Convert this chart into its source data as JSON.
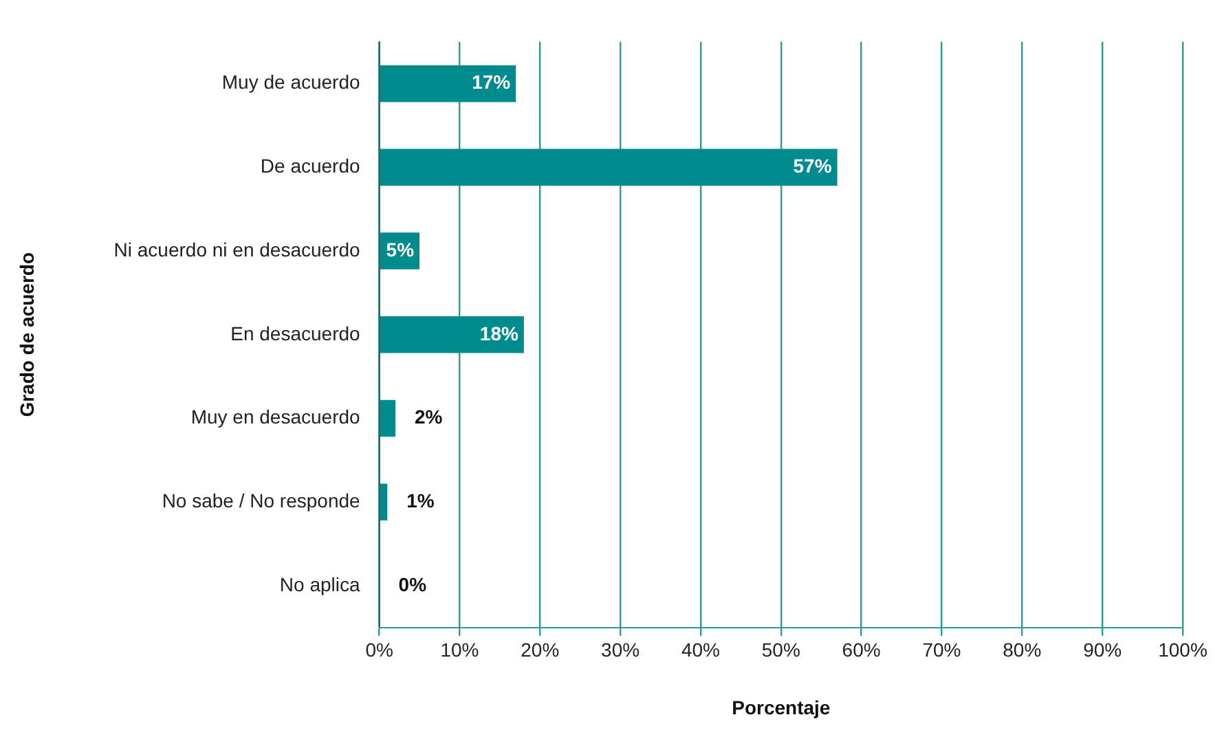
{
  "chart_data": {
    "type": "bar",
    "orientation": "horizontal",
    "xlabel": "Porcentaje",
    "ylabel": "Grado de acuerdo",
    "categories": [
      "Muy de acuerdo",
      "De acuerdo",
      "Ni acuerdo ni en desacuerdo",
      "En desacuerdo",
      "Muy en desacuerdo",
      "No sabe / No responde",
      "No aplica"
    ],
    "values": [
      17,
      57,
      5,
      18,
      2,
      1,
      0
    ],
    "value_labels": [
      "17%",
      "57%",
      "5%",
      "18%",
      "2%",
      "1%",
      "0%"
    ],
    "color": "#008b8f",
    "xlim": [
      0,
      100
    ],
    "xticks": [
      {
        "value": 0,
        "label": "0%"
      },
      {
        "value": 10,
        "label": "10%"
      },
      {
        "value": 20,
        "label": "20%"
      },
      {
        "value": 30,
        "label": "30%"
      },
      {
        "value": 40,
        "label": "40%"
      },
      {
        "value": 50,
        "label": "50%"
      },
      {
        "value": 60,
        "label": "60%"
      },
      {
        "value": 70,
        "label": "70%"
      },
      {
        "value": 80,
        "label": "80%"
      },
      {
        "value": 90,
        "label": "90%"
      },
      {
        "value": 100,
        "label": "100%"
      }
    ],
    "grid": "x",
    "legend": false
  }
}
